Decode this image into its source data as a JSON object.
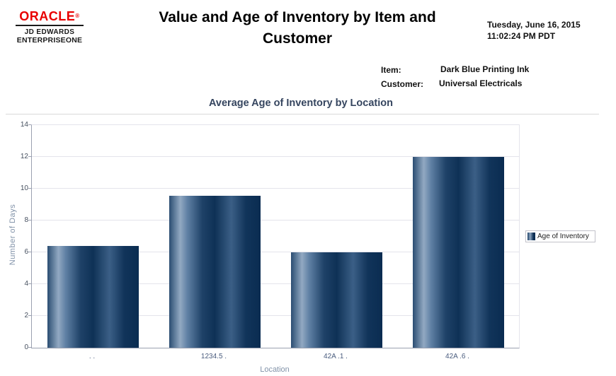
{
  "colors": {
    "oracle_red": "#e80000",
    "chart_title_text": "#35455f",
    "bar_dark": "#0e3156",
    "bar_highlight": "#92a9c2",
    "gridline": "#e4e4eb",
    "axis_line": "#9aa0b0",
    "y_tick_text": "#454f5e",
    "x_tick_text": "#4a5c7e",
    "axis_title_text": "#8293a9"
  },
  "header": {
    "logo": {
      "brand": "ORACLE",
      "reg_mark": "®",
      "line1": "JD EDWARDS",
      "line2": "ENTERPRISEONE"
    },
    "title": "Value and Age of Inventory by Item and Customer",
    "datetime": {
      "date": "Tuesday, June 16, 2015",
      "time": "11:02:24 PM PDT"
    }
  },
  "meta": {
    "item_label": "Item:",
    "item_value": "Dark Blue Printing Ink",
    "customer_label": "Customer:",
    "customer_value": "Universal Electricals"
  },
  "chart_data": {
    "type": "bar",
    "title": "Average Age of Inventory by Location",
    "categories": [
      ".  .",
      "1234.5 .",
      "42A .1 .",
      "42A .6 ."
    ],
    "values": [
      6.4,
      9.55,
      6.0,
      12.0
    ],
    "xlabel": "Location",
    "ylabel": "Number of Days",
    "ylim": [
      0,
      14
    ],
    "ytick_step": 2,
    "grid": true,
    "legend": {
      "position": "right",
      "entries": [
        "Age of Inventory"
      ]
    }
  }
}
